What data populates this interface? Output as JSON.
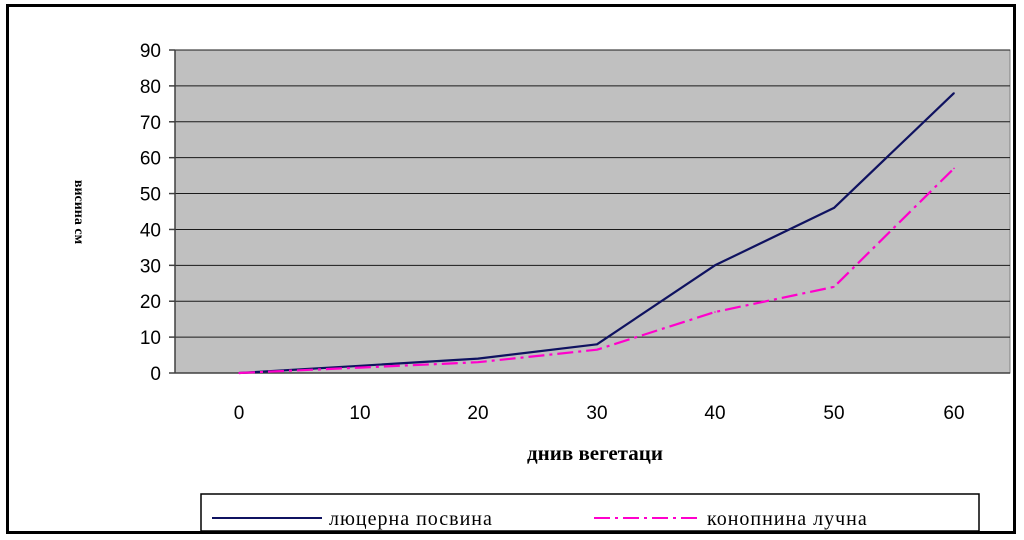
{
  "chart_data": {
    "type": "line",
    "xlabel": "днив вегетаци",
    "ylabel": "висина см",
    "x": [
      0,
      10,
      20,
      30,
      40,
      50,
      60
    ],
    "yticks": [
      0,
      10,
      20,
      30,
      40,
      50,
      60,
      70,
      80,
      90
    ],
    "ylim": [
      0,
      90
    ],
    "grid": true,
    "legend_position": "bottom",
    "plot_background": "#c0c0c0",
    "series": [
      {
        "name": "люцерна посвина",
        "values": [
          0,
          2,
          4,
          8,
          30,
          46,
          78
        ],
        "color": "#0f1260",
        "style": "solid"
      },
      {
        "name": "конопнина лучна",
        "values": [
          0,
          1.5,
          3,
          6.5,
          17,
          24,
          57
        ],
        "color": "#ff00cc",
        "style": "dash-dot"
      }
    ]
  }
}
